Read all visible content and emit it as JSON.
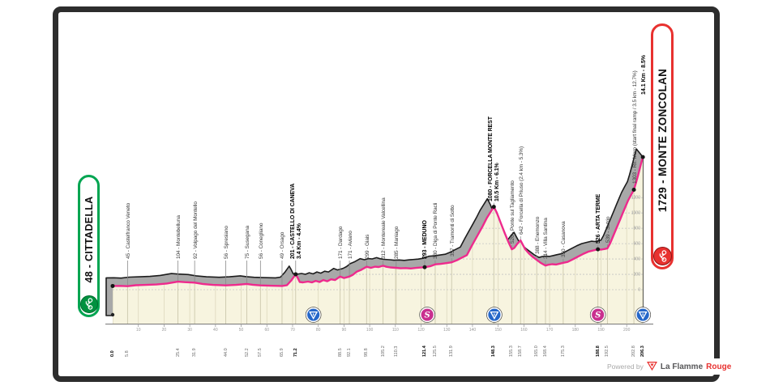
{
  "start_label": {
    "text": "48 - CITTADELLA",
    "color": "#00a551"
  },
  "finish_label": {
    "text": "1729 - MONTE ZONCOLAN",
    "color": "#e8312f",
    "final_climb": "14.1 Km - 8.5%"
  },
  "footer": {
    "powered_by": "Powered by",
    "brand_gray": "La Flamme",
    "brand_red": "Rouge"
  },
  "chart_data": {
    "type": "area",
    "title": "",
    "x_unit": "km",
    "x_range": [
      0,
      206.3
    ],
    "y_unit": "m",
    "y_range": [
      0,
      1729
    ],
    "grid": true,
    "route_color": "#ee2a8d",
    "fill_color": "#f7f4df",
    "shadow_color": "#a8a8a8",
    "x_ticks": [
      10,
      20,
      30,
      40,
      50,
      60,
      70,
      80,
      90,
      100,
      110,
      120,
      130,
      140,
      150,
      160,
      170,
      180,
      190,
      200
    ],
    "y_gridlines_m": [
      0,
      200,
      400,
      600,
      800,
      1000,
      1200
    ],
    "waypoints": [
      {
        "km": 0.0,
        "elevation_m": 48,
        "name": "CITTADELLA",
        "bold": true,
        "pill": "start",
        "dot": true
      },
      {
        "km": 5.8,
        "elevation_m": 45,
        "name": "Castelfranco Veneto"
      },
      {
        "km": 25.4,
        "elevation_m": 104,
        "name": "Montebelluna"
      },
      {
        "km": 31.9,
        "elevation_m": 92,
        "name": "Volpago del Montello"
      },
      {
        "km": 44.0,
        "elevation_m": 56,
        "name": "Spresiano"
      },
      {
        "km": 52.2,
        "elevation_m": 75,
        "name": "Susegana"
      },
      {
        "km": 57.5,
        "elevation_m": 56,
        "name": "Conegliano"
      },
      {
        "km": 65.9,
        "elevation_m": 49,
        "name": "Orsago"
      },
      {
        "km": 71.2,
        "elevation_m": 201,
        "name": "CASTELLO DI CANEVA",
        "bold": true,
        "note": "3.4 Km - 4.4%",
        "dot": true
      },
      {
        "km": 88.5,
        "elevation_m": 171,
        "name": "Dardago"
      },
      {
        "km": 92.1,
        "elevation_m": 171,
        "name": "Aviano"
      },
      {
        "km": 98.8,
        "elevation_m": 299,
        "name": "Giais"
      },
      {
        "km": 105.2,
        "elevation_m": 312,
        "name": "Montereale Valcellina"
      },
      {
        "km": 110.3,
        "elevation_m": 285,
        "name": "Maniago"
      },
      {
        "km": 121.4,
        "elevation_m": 293,
        "name": "MEDUNO",
        "bold": true,
        "dot": true
      },
      {
        "km": 125.5,
        "elevation_m": 330,
        "name": "Diga di Ponte Racli"
      },
      {
        "km": 131.9,
        "elevation_m": 357,
        "name": "Tramonti di Sotto"
      },
      {
        "km": 148.3,
        "elevation_m": 1080,
        "name": "FORCELLA MONTE REST",
        "bold": true,
        "note": "10.5 Km - 6.1%",
        "dot": true
      },
      {
        "km": 155.3,
        "elevation_m": 526,
        "name": "Ponte sul Tagliamento"
      },
      {
        "km": 158.7,
        "elevation_m": 642,
        "name": "Forcella di Priuso (2.4 km - 5.3%)"
      },
      {
        "km": 165.0,
        "elevation_m": 388,
        "name": "Enemonzo"
      },
      {
        "km": 168.4,
        "elevation_m": 314,
        "name": "Villa Santina"
      },
      {
        "km": 175.3,
        "elevation_m": 350,
        "name": "Casanova"
      },
      {
        "km": 188.8,
        "elevation_m": 526,
        "name": "ARTA TERME",
        "bold": true,
        "dot": true
      },
      {
        "km": 192.5,
        "elevation_m": 539,
        "name": "Sutrio"
      },
      {
        "km": 202.8,
        "elevation_m": 1303,
        "name": "Rif. Moro (start final ramp / 3.5 km - 12.7%)",
        "dot": true
      },
      {
        "km": 206.3,
        "elevation_m": 1729,
        "name": "MONTE ZONCOLAN",
        "bold": true,
        "pill": "finish",
        "dot": true
      }
    ],
    "markers": [
      {
        "km": 78.1,
        "type": "kom"
      },
      {
        "km": 122.4,
        "type": "sprint"
      },
      {
        "km": 148.5,
        "type": "kom"
      },
      {
        "km": 188.8,
        "type": "sprint"
      },
      {
        "km": 206.3,
        "type": "kom"
      }
    ],
    "profile": [
      [
        0,
        48
      ],
      [
        3,
        50
      ],
      [
        5.8,
        45
      ],
      [
        9,
        58
      ],
      [
        13,
        62
      ],
      [
        17,
        68
      ],
      [
        21,
        80
      ],
      [
        25.4,
        104
      ],
      [
        28,
        98
      ],
      [
        31.9,
        92
      ],
      [
        35,
        75
      ],
      [
        39,
        62
      ],
      [
        44,
        56
      ],
      [
        48,
        62
      ],
      [
        52.2,
        75
      ],
      [
        54.5,
        64
      ],
      [
        57.5,
        56
      ],
      [
        61,
        52
      ],
      [
        65.9,
        49
      ],
      [
        67.8,
        58
      ],
      [
        69.5,
        120
      ],
      [
        71.2,
        201
      ],
      [
        72,
        155
      ],
      [
        72.8,
        100
      ],
      [
        74,
        95
      ],
      [
        76,
        105
      ],
      [
        77.5,
        95
      ],
      [
        79,
        115
      ],
      [
        80.5,
        100
      ],
      [
        82,
        125
      ],
      [
        83.5,
        110
      ],
      [
        85,
        135
      ],
      [
        86.5,
        125
      ],
      [
        88.5,
        171
      ],
      [
        90,
        152
      ],
      [
        92.1,
        171
      ],
      [
        93.5,
        195
      ],
      [
        95,
        235
      ],
      [
        96.5,
        255
      ],
      [
        98.8,
        299
      ],
      [
        100.5,
        285
      ],
      [
        102,
        300
      ],
      [
        103.5,
        295
      ],
      [
        105.2,
        312
      ],
      [
        106.5,
        298
      ],
      [
        108,
        290
      ],
      [
        110.3,
        285
      ],
      [
        112,
        278
      ],
      [
        114,
        282
      ],
      [
        116,
        276
      ],
      [
        118,
        284
      ],
      [
        121.4,
        293
      ],
      [
        123.5,
        305
      ],
      [
        125.5,
        330
      ],
      [
        127.5,
        335
      ],
      [
        129.5,
        345
      ],
      [
        131.9,
        357
      ],
      [
        134,
        385
      ],
      [
        136,
        420
      ],
      [
        137.8,
        450
      ],
      [
        139.5,
        560
      ],
      [
        141,
        650
      ],
      [
        142.5,
        740
      ],
      [
        144,
        830
      ],
      [
        145.5,
        930
      ],
      [
        147,
        1010
      ],
      [
        148.3,
        1080
      ],
      [
        149.5,
        1000
      ],
      [
        151,
        870
      ],
      [
        152.5,
        740
      ],
      [
        154,
        620
      ],
      [
        155.3,
        526
      ],
      [
        156.3,
        545
      ],
      [
        157.5,
        600
      ],
      [
        158.7,
        642
      ],
      [
        159.5,
        590
      ],
      [
        160.5,
        530
      ],
      [
        162,
        470
      ],
      [
        163.5,
        425
      ],
      [
        165,
        388
      ],
      [
        166.5,
        350
      ],
      [
        168.4,
        314
      ],
      [
        169.5,
        325
      ],
      [
        171,
        332
      ],
      [
        172.5,
        328
      ],
      [
        174,
        340
      ],
      [
        175.3,
        350
      ],
      [
        177,
        362
      ],
      [
        179,
        395
      ],
      [
        181,
        430
      ],
      [
        183,
        465
      ],
      [
        185,
        495
      ],
      [
        187,
        512
      ],
      [
        188.8,
        526
      ],
      [
        190,
        522
      ],
      [
        191.3,
        530
      ],
      [
        192.5,
        539
      ],
      [
        193.5,
        600
      ],
      [
        194.5,
        680
      ],
      [
        195.5,
        760
      ],
      [
        196.5,
        840
      ],
      [
        197.5,
        920
      ],
      [
        198.5,
        1000
      ],
      [
        199.5,
        1080
      ],
      [
        200.5,
        1160
      ],
      [
        201.6,
        1230
      ],
      [
        202.8,
        1303
      ],
      [
        203.6,
        1390
      ],
      [
        204.4,
        1490
      ],
      [
        205.1,
        1580
      ],
      [
        205.7,
        1660
      ],
      [
        206.3,
        1729
      ]
    ]
  }
}
